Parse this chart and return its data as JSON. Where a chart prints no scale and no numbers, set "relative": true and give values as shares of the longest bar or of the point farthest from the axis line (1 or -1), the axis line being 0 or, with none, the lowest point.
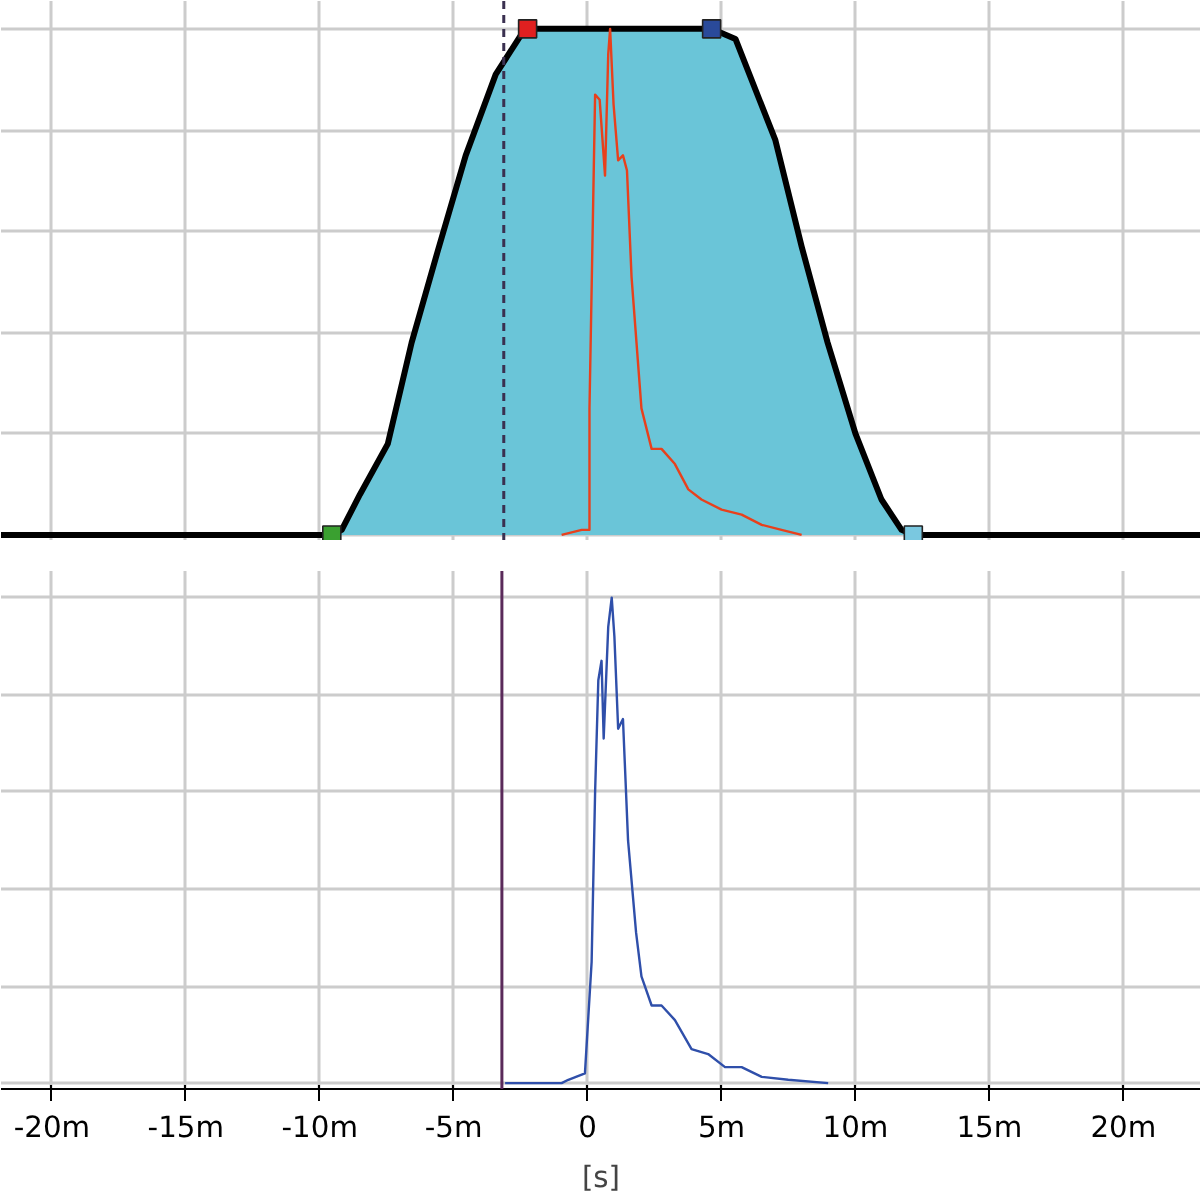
{
  "chart_data": [
    {
      "type": "area",
      "relative": true,
      "grid": true,
      "tick_labels": false,
      "xlim": [
        -21.9,
        22.9
      ],
      "xticks": [
        {
          "value": -20,
          "label": null
        },
        {
          "value": -15,
          "label": null
        },
        {
          "value": -10,
          "label": null
        },
        {
          "value": -5,
          "label": null
        },
        {
          "value": 0,
          "label": null
        },
        {
          "value": 5,
          "label": null
        },
        {
          "value": 10,
          "label": null
        },
        {
          "value": 15,
          "label": null
        },
        {
          "value": 20,
          "label": null
        }
      ],
      "ref_lines": [
        {
          "axis": "x",
          "value": -3.13,
          "color": "#3a3050",
          "line_style": "dashed"
        }
      ],
      "series": [
        {
          "color": "#6ac5d8",
          "x": [
            -21.9,
            -9.55,
            -9.18,
            -8.5,
            -7.46,
            -6.57,
            -5.6,
            -4.55,
            -3.43,
            -2.46,
            -2.24,
            4.63,
            5.52,
            7.01,
            7.99,
            8.96,
            10.0,
            10.97,
            11.72,
            12.16,
            22.9
          ],
          "values": [
            0,
            0,
            0.01,
            0.08,
            0.18,
            0.38,
            0.56,
            0.75,
            0.91,
            0.99,
            1,
            1,
            0.98,
            0.78,
            0.57,
            0.38,
            0.2,
            0.07,
            0.01,
            0,
            0
          ]
        },
        {
          "type": "line",
          "color": "#e8401c",
          "x": [
            -0.97,
            -0.22,
            0.07,
            0.07,
            0.28,
            0.45,
            0.65,
            0.77,
            0.84,
            0.97,
            1.14,
            1.32,
            1.47,
            1.64,
            2.01,
            2.39,
            2.76,
            3.26,
            3.76,
            4.25,
            5.0,
            5.75,
            6.5,
            7.24,
            7.99
          ],
          "values": [
            0,
            0.01,
            0.01,
            0.25,
            0.87,
            0.86,
            0.71,
            0.95,
            1.0,
            0.85,
            0.74,
            0.75,
            0.72,
            0.51,
            0.25,
            0.17,
            0.17,
            0.14,
            0.09,
            0.07,
            0.05,
            0.04,
            0.02,
            0.01,
            0
          ]
        },
        {
          "type": "scatter",
          "marker": "square",
          "x": [
            -9.55,
            -2.24,
            4.63,
            12.16
          ],
          "values": [
            0,
            1,
            1,
            0
          ],
          "colors": [
            "#3aa030",
            "#e02020",
            "#2a4a9a",
            "#7ac8e0"
          ]
        }
      ]
    },
    {
      "type": "line",
      "relative": true,
      "grid": true,
      "tick_labels": "x",
      "xlabel": "[s]",
      "xlim": [
        -21.9,
        22.9
      ],
      "xticks": [
        {
          "value": -20,
          "label": "-20m"
        },
        {
          "value": -15,
          "label": "-15m"
        },
        {
          "value": -10,
          "label": "-10m"
        },
        {
          "value": -5,
          "label": "-5m"
        },
        0,
        {
          "value": 5,
          "label": "5m"
        },
        {
          "value": 10,
          "label": "10m"
        },
        {
          "value": 15,
          "label": "15m"
        },
        {
          "value": 20,
          "label": "20m"
        }
      ],
      "ref_lines": [
        {
          "axis": "x",
          "value": -3.2,
          "color": "#5a2a5a",
          "line_style": "solid"
        }
      ],
      "series": [
        {
          "color": "#2f4faa",
          "x": [
            -3.08,
            -0.97,
            -0.72,
            -0.1,
            0.15,
            0.28,
            0.4,
            0.52,
            0.6,
            0.77,
            0.9,
            1.0,
            1.14,
            1.32,
            1.51,
            1.81,
            2.01,
            2.39,
            2.76,
            3.26,
            3.88,
            4.5,
            5.13,
            5.75,
            6.5,
            7.49,
            8.98
          ],
          "values": [
            0,
            0,
            0.007,
            0.02,
            0.25,
            0.6,
            0.83,
            0.87,
            0.71,
            0.94,
            1.0,
            0.92,
            0.73,
            0.75,
            0.5,
            0.31,
            0.22,
            0.16,
            0.16,
            0.13,
            0.07,
            0.06,
            0.033,
            0.033,
            0.013,
            0.007,
            0
          ]
        }
      ]
    }
  ]
}
